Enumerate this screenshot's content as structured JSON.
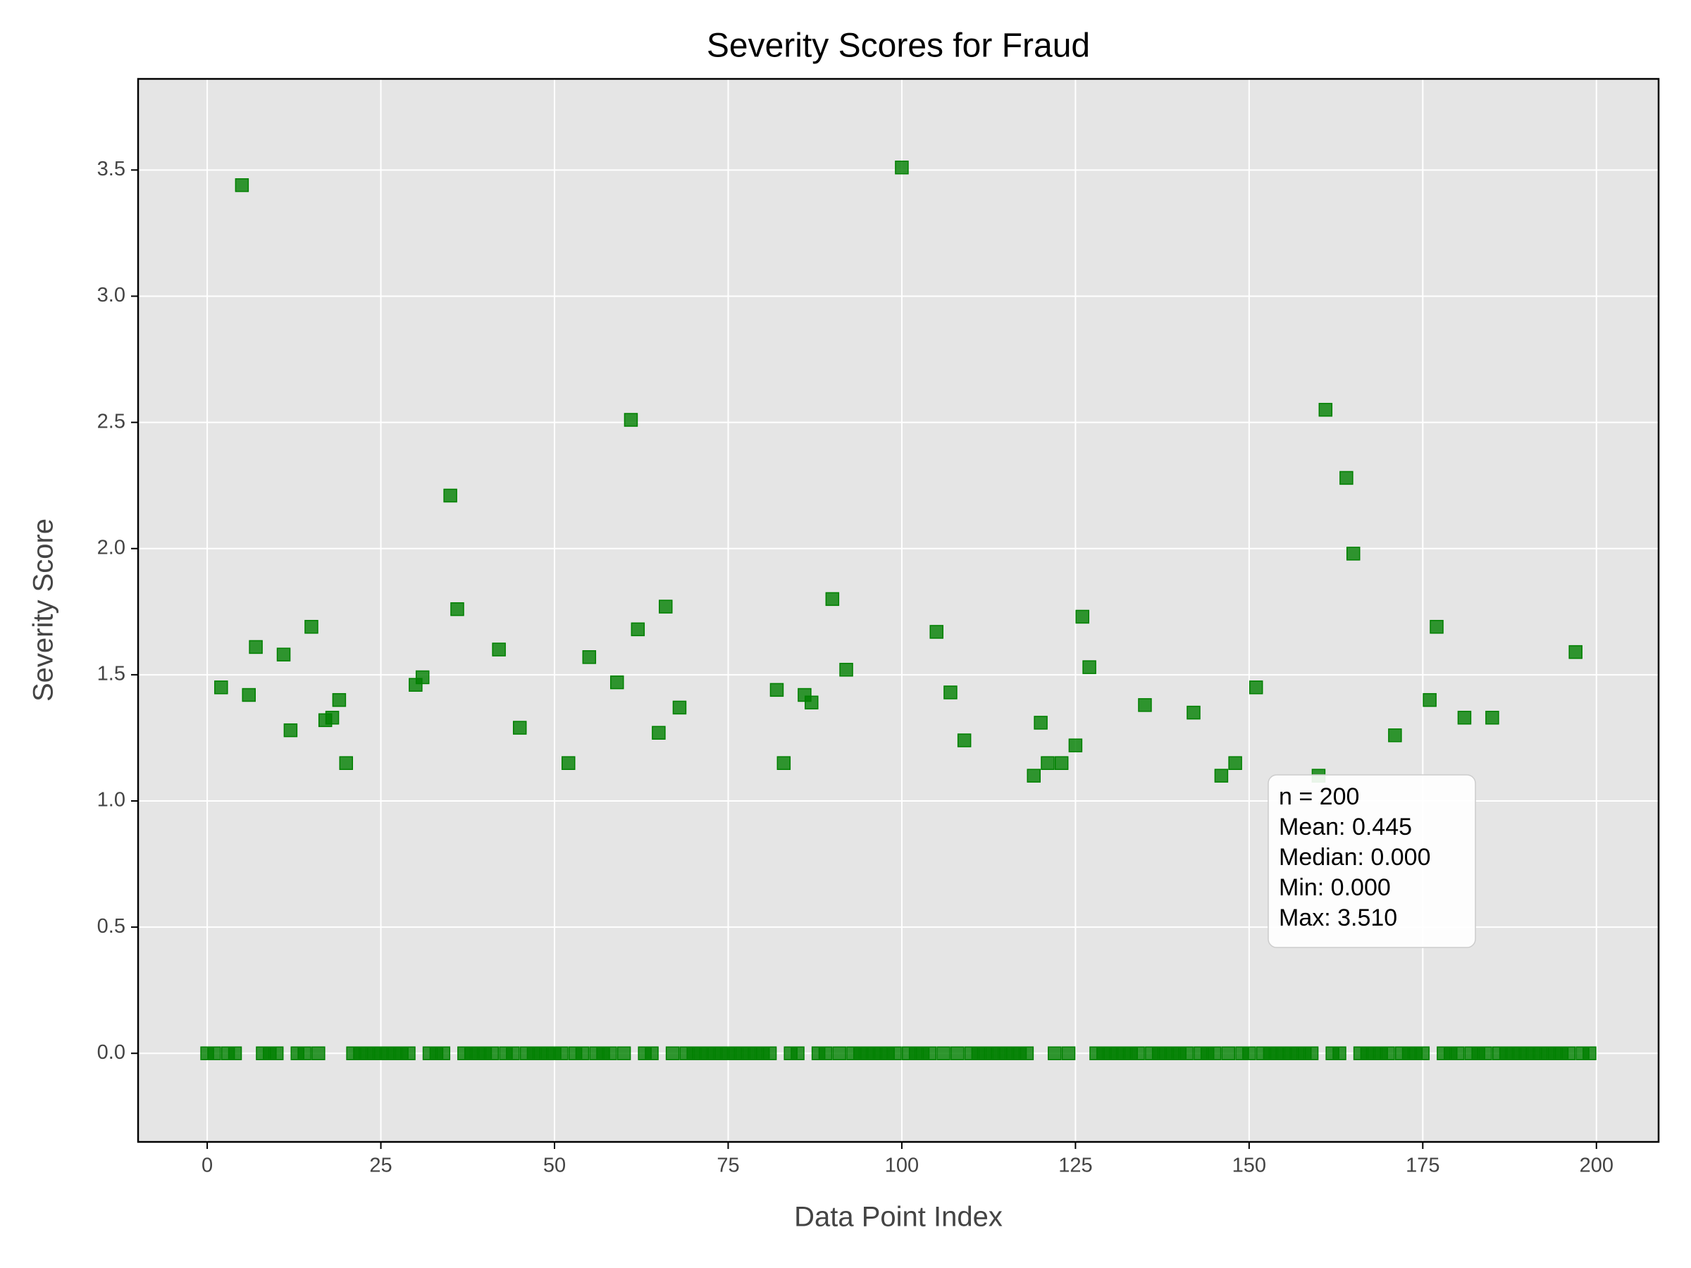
{
  "chart_data": {
    "type": "scatter",
    "title": "Severity Scores for Fraud",
    "xlabel": "Data Point Index",
    "ylabel": "Severity Score",
    "color": "#008000",
    "x": [
      0,
      1,
      2,
      3,
      4,
      5,
      6,
      7,
      8,
      9,
      10,
      11,
      12,
      13,
      14,
      15,
      16,
      17,
      18,
      19,
      20,
      21,
      22,
      23,
      24,
      25,
      26,
      27,
      28,
      29,
      30,
      31,
      32,
      33,
      34,
      35,
      36,
      37,
      38,
      39,
      40,
      41,
      42,
      43,
      44,
      45,
      46,
      47,
      48,
      49,
      50,
      51,
      52,
      53,
      54,
      55,
      56,
      57,
      58,
      59,
      60,
      61,
      62,
      63,
      64,
      65,
      66,
      67,
      68,
      69,
      70,
      71,
      72,
      73,
      74,
      75,
      76,
      77,
      78,
      79,
      80,
      81,
      82,
      83,
      84,
      85,
      86,
      87,
      88,
      89,
      90,
      91,
      92,
      93,
      94,
      95,
      96,
      97,
      98,
      99,
      100,
      101,
      102,
      103,
      104,
      105,
      106,
      107,
      108,
      109,
      110,
      111,
      112,
      113,
      114,
      115,
      116,
      117,
      118,
      119,
      120,
      121,
      122,
      123,
      124,
      125,
      126,
      127,
      128,
      129,
      130,
      131,
      132,
      133,
      134,
      135,
      136,
      137,
      138,
      139,
      140,
      141,
      142,
      143,
      144,
      145,
      146,
      147,
      148,
      149,
      150,
      151,
      152,
      153,
      154,
      155,
      156,
      157,
      158,
      159,
      160,
      161,
      162,
      163,
      164,
      165,
      166,
      167,
      168,
      169,
      170,
      171,
      172,
      173,
      174,
      175,
      176,
      177,
      178,
      179,
      180,
      181,
      182,
      183,
      184,
      185,
      186,
      187,
      188,
      189,
      190,
      191,
      192,
      193,
      194,
      195,
      196,
      197,
      198,
      199
    ],
    "values": [
      0,
      0,
      1.45,
      0,
      0,
      3.44,
      1.42,
      1.61,
      0,
      0,
      0,
      1.58,
      1.28,
      0,
      0,
      1.69,
      0,
      1.32,
      1.33,
      1.4,
      1.15,
      0,
      0,
      0,
      0,
      0,
      0,
      0,
      0,
      0,
      1.46,
      1.49,
      0,
      0,
      0,
      2.21,
      1.76,
      0,
      0,
      0,
      0,
      0,
      1.6,
      0,
      0,
      1.29,
      0,
      0,
      0,
      0,
      0,
      0,
      1.15,
      0,
      0,
      1.57,
      0,
      0,
      0,
      1.47,
      0,
      2.51,
      1.68,
      0,
      0,
      1.27,
      1.77,
      0,
      1.37,
      0,
      0,
      0,
      0,
      0,
      0,
      0,
      0,
      0,
      0,
      0,
      0,
      0,
      1.44,
      1.15,
      0,
      0,
      1.42,
      1.39,
      0,
      0,
      1.8,
      0,
      1.52,
      0,
      0,
      0,
      0,
      0,
      0,
      0,
      3.51,
      0,
      0,
      0,
      0,
      1.67,
      0,
      1.43,
      0,
      1.24,
      0,
      0,
      0,
      0,
      0,
      0,
      0,
      0,
      0,
      1.1,
      1.31,
      1.15,
      0,
      1.15,
      0,
      1.22,
      1.73,
      1.53,
      0,
      0,
      0,
      0,
      0,
      0,
      0,
      1.38,
      0,
      0,
      0,
      0,
      0,
      0,
      1.35,
      0,
      0,
      0,
      1.1,
      0,
      1.15,
      0,
      0,
      1.45,
      0,
      0,
      0,
      0,
      0,
      0,
      0,
      0,
      1.1,
      2.55,
      0,
      0,
      2.28,
      1.98,
      0,
      0,
      0,
      0,
      0,
      1.26,
      0,
      0,
      0,
      0,
      1.4,
      1.69,
      0,
      0,
      0,
      1.33,
      0,
      0,
      0,
      1.33,
      0,
      0,
      0,
      0,
      0,
      0,
      0,
      0,
      0,
      0,
      0,
      1.59,
      0,
      0
    ],
    "xlim": [
      -9.95,
      208.95
    ],
    "ylim": [
      -0.351,
      3.861
    ],
    "xticks": [
      0,
      25,
      50,
      75,
      100,
      125,
      150,
      175,
      200
    ],
    "yticks": [
      {
        "value": 0,
        "label": "0.0"
      },
      0.5,
      {
        "value": 1,
        "label": "1.0"
      },
      1.5,
      {
        "value": 2,
        "label": "2.0"
      },
      2.5,
      {
        "value": 3,
        "label": "3.0"
      },
      3.5
    ],
    "grid": true,
    "annotation": [
      "n = 200",
      "Mean: 0.445",
      "Median: 0.000",
      "Min: 0.000",
      "Max: 3.510"
    ]
  }
}
